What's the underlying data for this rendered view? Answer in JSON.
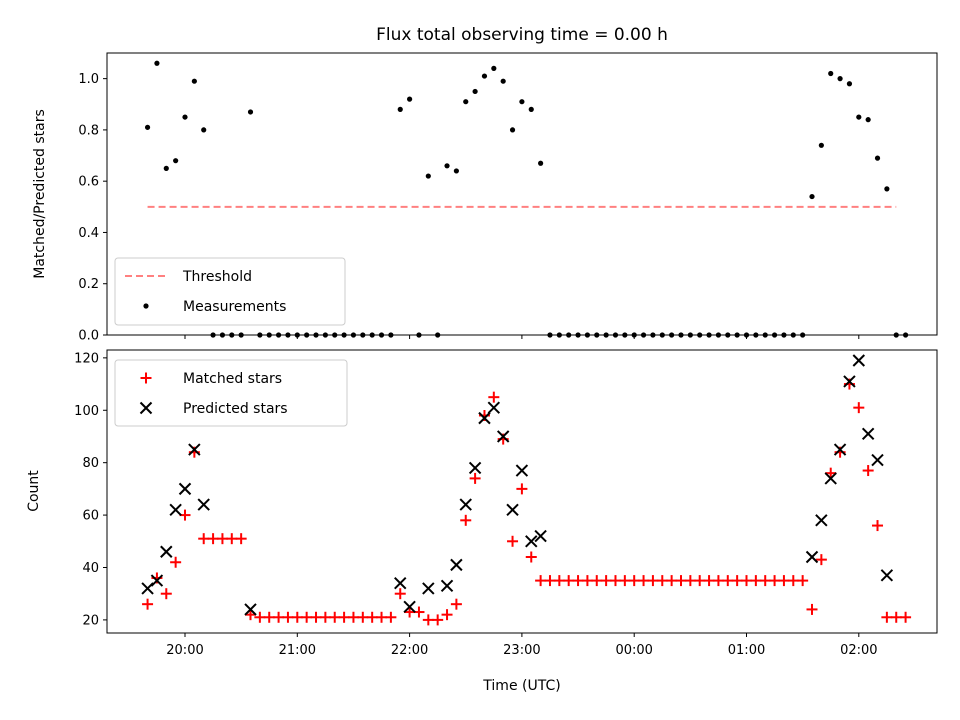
{
  "chart_data": [
    {
      "type": "scatter",
      "title": "Flux total observing time = 0.00 h",
      "xlabel": "",
      "ylabel": "Matched/Predicted stars",
      "ylim": [
        0,
        1.1
      ],
      "y_ticks": [
        "0.0",
        "0.2",
        "0.4",
        "0.6",
        "0.8",
        "1.0"
      ],
      "grid": false,
      "legend_position": "lower-left",
      "series": [
        {
          "name": "Threshold",
          "style": "dashed-line",
          "color": "#ff8080",
          "x_start": "19:40",
          "x_end": "02:20",
          "y": 0.5
        },
        {
          "name": "Measurements",
          "style": "dot",
          "color": "#000000",
          "points": [
            [
              "19:40",
              0.81
            ],
            [
              "19:45",
              1.06
            ],
            [
              "19:50",
              0.65
            ],
            [
              "19:55",
              0.68
            ],
            [
              "20:00",
              0.85
            ],
            [
              "20:05",
              0.99
            ],
            [
              "20:10",
              0.8
            ],
            [
              "20:15",
              0.0
            ],
            [
              "20:20",
              0.0
            ],
            [
              "20:25",
              0.0
            ],
            [
              "20:30",
              0.0
            ],
            [
              "20:35",
              0.87
            ],
            [
              "20:40",
              0.0
            ],
            [
              "20:45",
              0.0
            ],
            [
              "20:50",
              0.0
            ],
            [
              "20:55",
              0.0
            ],
            [
              "21:00",
              0.0
            ],
            [
              "21:05",
              0.0
            ],
            [
              "21:10",
              0.0
            ],
            [
              "21:15",
              0.0
            ],
            [
              "21:20",
              0.0
            ],
            [
              "21:25",
              0.0
            ],
            [
              "21:30",
              0.0
            ],
            [
              "21:35",
              0.0
            ],
            [
              "21:40",
              0.0
            ],
            [
              "21:45",
              0.0
            ],
            [
              "21:50",
              0.0
            ],
            [
              "21:55",
              0.88
            ],
            [
              "22:00",
              0.92
            ],
            [
              "22:05",
              0.0
            ],
            [
              "22:10",
              0.62
            ],
            [
              "22:15",
              0.0
            ],
            [
              "22:20",
              0.66
            ],
            [
              "22:25",
              0.64
            ],
            [
              "22:30",
              0.91
            ],
            [
              "22:35",
              0.95
            ],
            [
              "22:40",
              1.01
            ],
            [
              "22:45",
              1.04
            ],
            [
              "22:50",
              0.99
            ],
            [
              "22:55",
              0.8
            ],
            [
              "23:00",
              0.91
            ],
            [
              "23:05",
              0.88
            ],
            [
              "23:10",
              0.67
            ],
            [
              "23:15",
              0.0
            ],
            [
              "23:20",
              0.0
            ],
            [
              "23:25",
              0.0
            ],
            [
              "23:30",
              0.0
            ],
            [
              "23:35",
              0.0
            ],
            [
              "23:40",
              0.0
            ],
            [
              "23:45",
              0.0
            ],
            [
              "23:50",
              0.0
            ],
            [
              "23:55",
              0.0
            ],
            [
              "00:00",
              0.0
            ],
            [
              "00:05",
              0.0
            ],
            [
              "00:10",
              0.0
            ],
            [
              "00:15",
              0.0
            ],
            [
              "00:20",
              0.0
            ],
            [
              "00:25",
              0.0
            ],
            [
              "00:30",
              0.0
            ],
            [
              "00:35",
              0.0
            ],
            [
              "00:40",
              0.0
            ],
            [
              "00:45",
              0.0
            ],
            [
              "00:50",
              0.0
            ],
            [
              "00:55",
              0.0
            ],
            [
              "01:00",
              0.0
            ],
            [
              "01:05",
              0.0
            ],
            [
              "01:10",
              0.0
            ],
            [
              "01:15",
              0.0
            ],
            [
              "01:20",
              0.0
            ],
            [
              "01:25",
              0.0
            ],
            [
              "01:30",
              0.0
            ],
            [
              "01:35",
              0.54
            ],
            [
              "01:40",
              0.74
            ],
            [
              "01:45",
              1.02
            ],
            [
              "01:50",
              1.0
            ],
            [
              "01:55",
              0.98
            ],
            [
              "02:00",
              0.85
            ],
            [
              "02:05",
              0.84
            ],
            [
              "02:10",
              0.69
            ],
            [
              "02:15",
              0.57
            ],
            [
              "02:20",
              0.0
            ],
            [
              "02:25",
              0.0
            ]
          ]
        }
      ]
    },
    {
      "type": "scatter",
      "title": "",
      "xlabel": "Time (UTC)",
      "ylabel": "Count",
      "ylim": [
        15,
        123
      ],
      "y_ticks": [
        "20",
        "40",
        "60",
        "80",
        "100",
        "120"
      ],
      "x_ticks": [
        "20:00",
        "21:00",
        "22:00",
        "23:00",
        "00:00",
        "01:00",
        "02:00"
      ],
      "grid": false,
      "legend_position": "upper-left",
      "series": [
        {
          "name": "Matched stars",
          "marker": "+",
          "color": "#ff0000",
          "points": [
            [
              "19:40",
              26
            ],
            [
              "19:45",
              36
            ],
            [
              "19:50",
              30
            ],
            [
              "19:55",
              42
            ],
            [
              "20:00",
              60
            ],
            [
              "20:05",
              84
            ],
            [
              "20:10",
              51
            ],
            [
              "20:15",
              51
            ],
            [
              "20:20",
              51
            ],
            [
              "20:25",
              51
            ],
            [
              "20:30",
              51
            ],
            [
              "20:35",
              22
            ],
            [
              "20:40",
              21
            ],
            [
              "20:45",
              21
            ],
            [
              "20:50",
              21
            ],
            [
              "20:55",
              21
            ],
            [
              "21:00",
              21
            ],
            [
              "21:05",
              21
            ],
            [
              "21:10",
              21
            ],
            [
              "21:15",
              21
            ],
            [
              "21:20",
              21
            ],
            [
              "21:25",
              21
            ],
            [
              "21:30",
              21
            ],
            [
              "21:35",
              21
            ],
            [
              "21:40",
              21
            ],
            [
              "21:45",
              21
            ],
            [
              "21:50",
              21
            ],
            [
              "21:55",
              30
            ],
            [
              "22:00",
              23
            ],
            [
              "22:05",
              23
            ],
            [
              "22:10",
              20
            ],
            [
              "22:15",
              20
            ],
            [
              "22:20",
              22
            ],
            [
              "22:25",
              26
            ],
            [
              "22:30",
              58
            ],
            [
              "22:35",
              74
            ],
            [
              "22:40",
              98
            ],
            [
              "22:45",
              105
            ],
            [
              "22:50",
              89
            ],
            [
              "22:55",
              50
            ],
            [
              "23:00",
              70
            ],
            [
              "23:05",
              44
            ],
            [
              "23:10",
              35
            ],
            [
              "23:15",
              35
            ],
            [
              "23:20",
              35
            ],
            [
              "23:25",
              35
            ],
            [
              "23:30",
              35
            ],
            [
              "23:35",
              35
            ],
            [
              "23:40",
              35
            ],
            [
              "23:45",
              35
            ],
            [
              "23:50",
              35
            ],
            [
              "23:55",
              35
            ],
            [
              "00:00",
              35
            ],
            [
              "00:05",
              35
            ],
            [
              "00:10",
              35
            ],
            [
              "00:15",
              35
            ],
            [
              "00:20",
              35
            ],
            [
              "00:25",
              35
            ],
            [
              "00:30",
              35
            ],
            [
              "00:35",
              35
            ],
            [
              "00:40",
              35
            ],
            [
              "00:45",
              35
            ],
            [
              "00:50",
              35
            ],
            [
              "00:55",
              35
            ],
            [
              "01:00",
              35
            ],
            [
              "01:05",
              35
            ],
            [
              "01:10",
              35
            ],
            [
              "01:15",
              35
            ],
            [
              "01:20",
              35
            ],
            [
              "01:25",
              35
            ],
            [
              "01:30",
              35
            ],
            [
              "01:35",
              24
            ],
            [
              "01:40",
              43
            ],
            [
              "01:45",
              76
            ],
            [
              "01:50",
              84
            ],
            [
              "01:55",
              110
            ],
            [
              "02:00",
              101
            ],
            [
              "02:05",
              77
            ],
            [
              "02:10",
              56
            ],
            [
              "02:15",
              21
            ],
            [
              "02:20",
              21
            ],
            [
              "02:25",
              21
            ]
          ]
        },
        {
          "name": "Predicted stars",
          "marker": "x",
          "color": "#000000",
          "points": [
            [
              "19:40",
              32
            ],
            [
              "19:45",
              35
            ],
            [
              "19:50",
              46
            ],
            [
              "19:55",
              62
            ],
            [
              "20:00",
              70
            ],
            [
              "20:05",
              85
            ],
            [
              "20:10",
              64
            ],
            [
              "20:35",
              24
            ],
            [
              "21:55",
              34
            ],
            [
              "22:00",
              25
            ],
            [
              "22:10",
              32
            ],
            [
              "22:20",
              33
            ],
            [
              "22:25",
              41
            ],
            [
              "22:30",
              64
            ],
            [
              "22:35",
              78
            ],
            [
              "22:40",
              97
            ],
            [
              "22:45",
              101
            ],
            [
              "22:50",
              90
            ],
            [
              "22:55",
              62
            ],
            [
              "23:00",
              77
            ],
            [
              "23:05",
              50
            ],
            [
              "23:10",
              52
            ],
            [
              "01:35",
              44
            ],
            [
              "01:40",
              58
            ],
            [
              "01:45",
              74
            ],
            [
              "01:50",
              85
            ],
            [
              "01:55",
              111
            ],
            [
              "02:00",
              119
            ],
            [
              "02:05",
              91
            ],
            [
              "02:10",
              81
            ],
            [
              "02:15",
              37
            ]
          ]
        }
      ]
    }
  ]
}
